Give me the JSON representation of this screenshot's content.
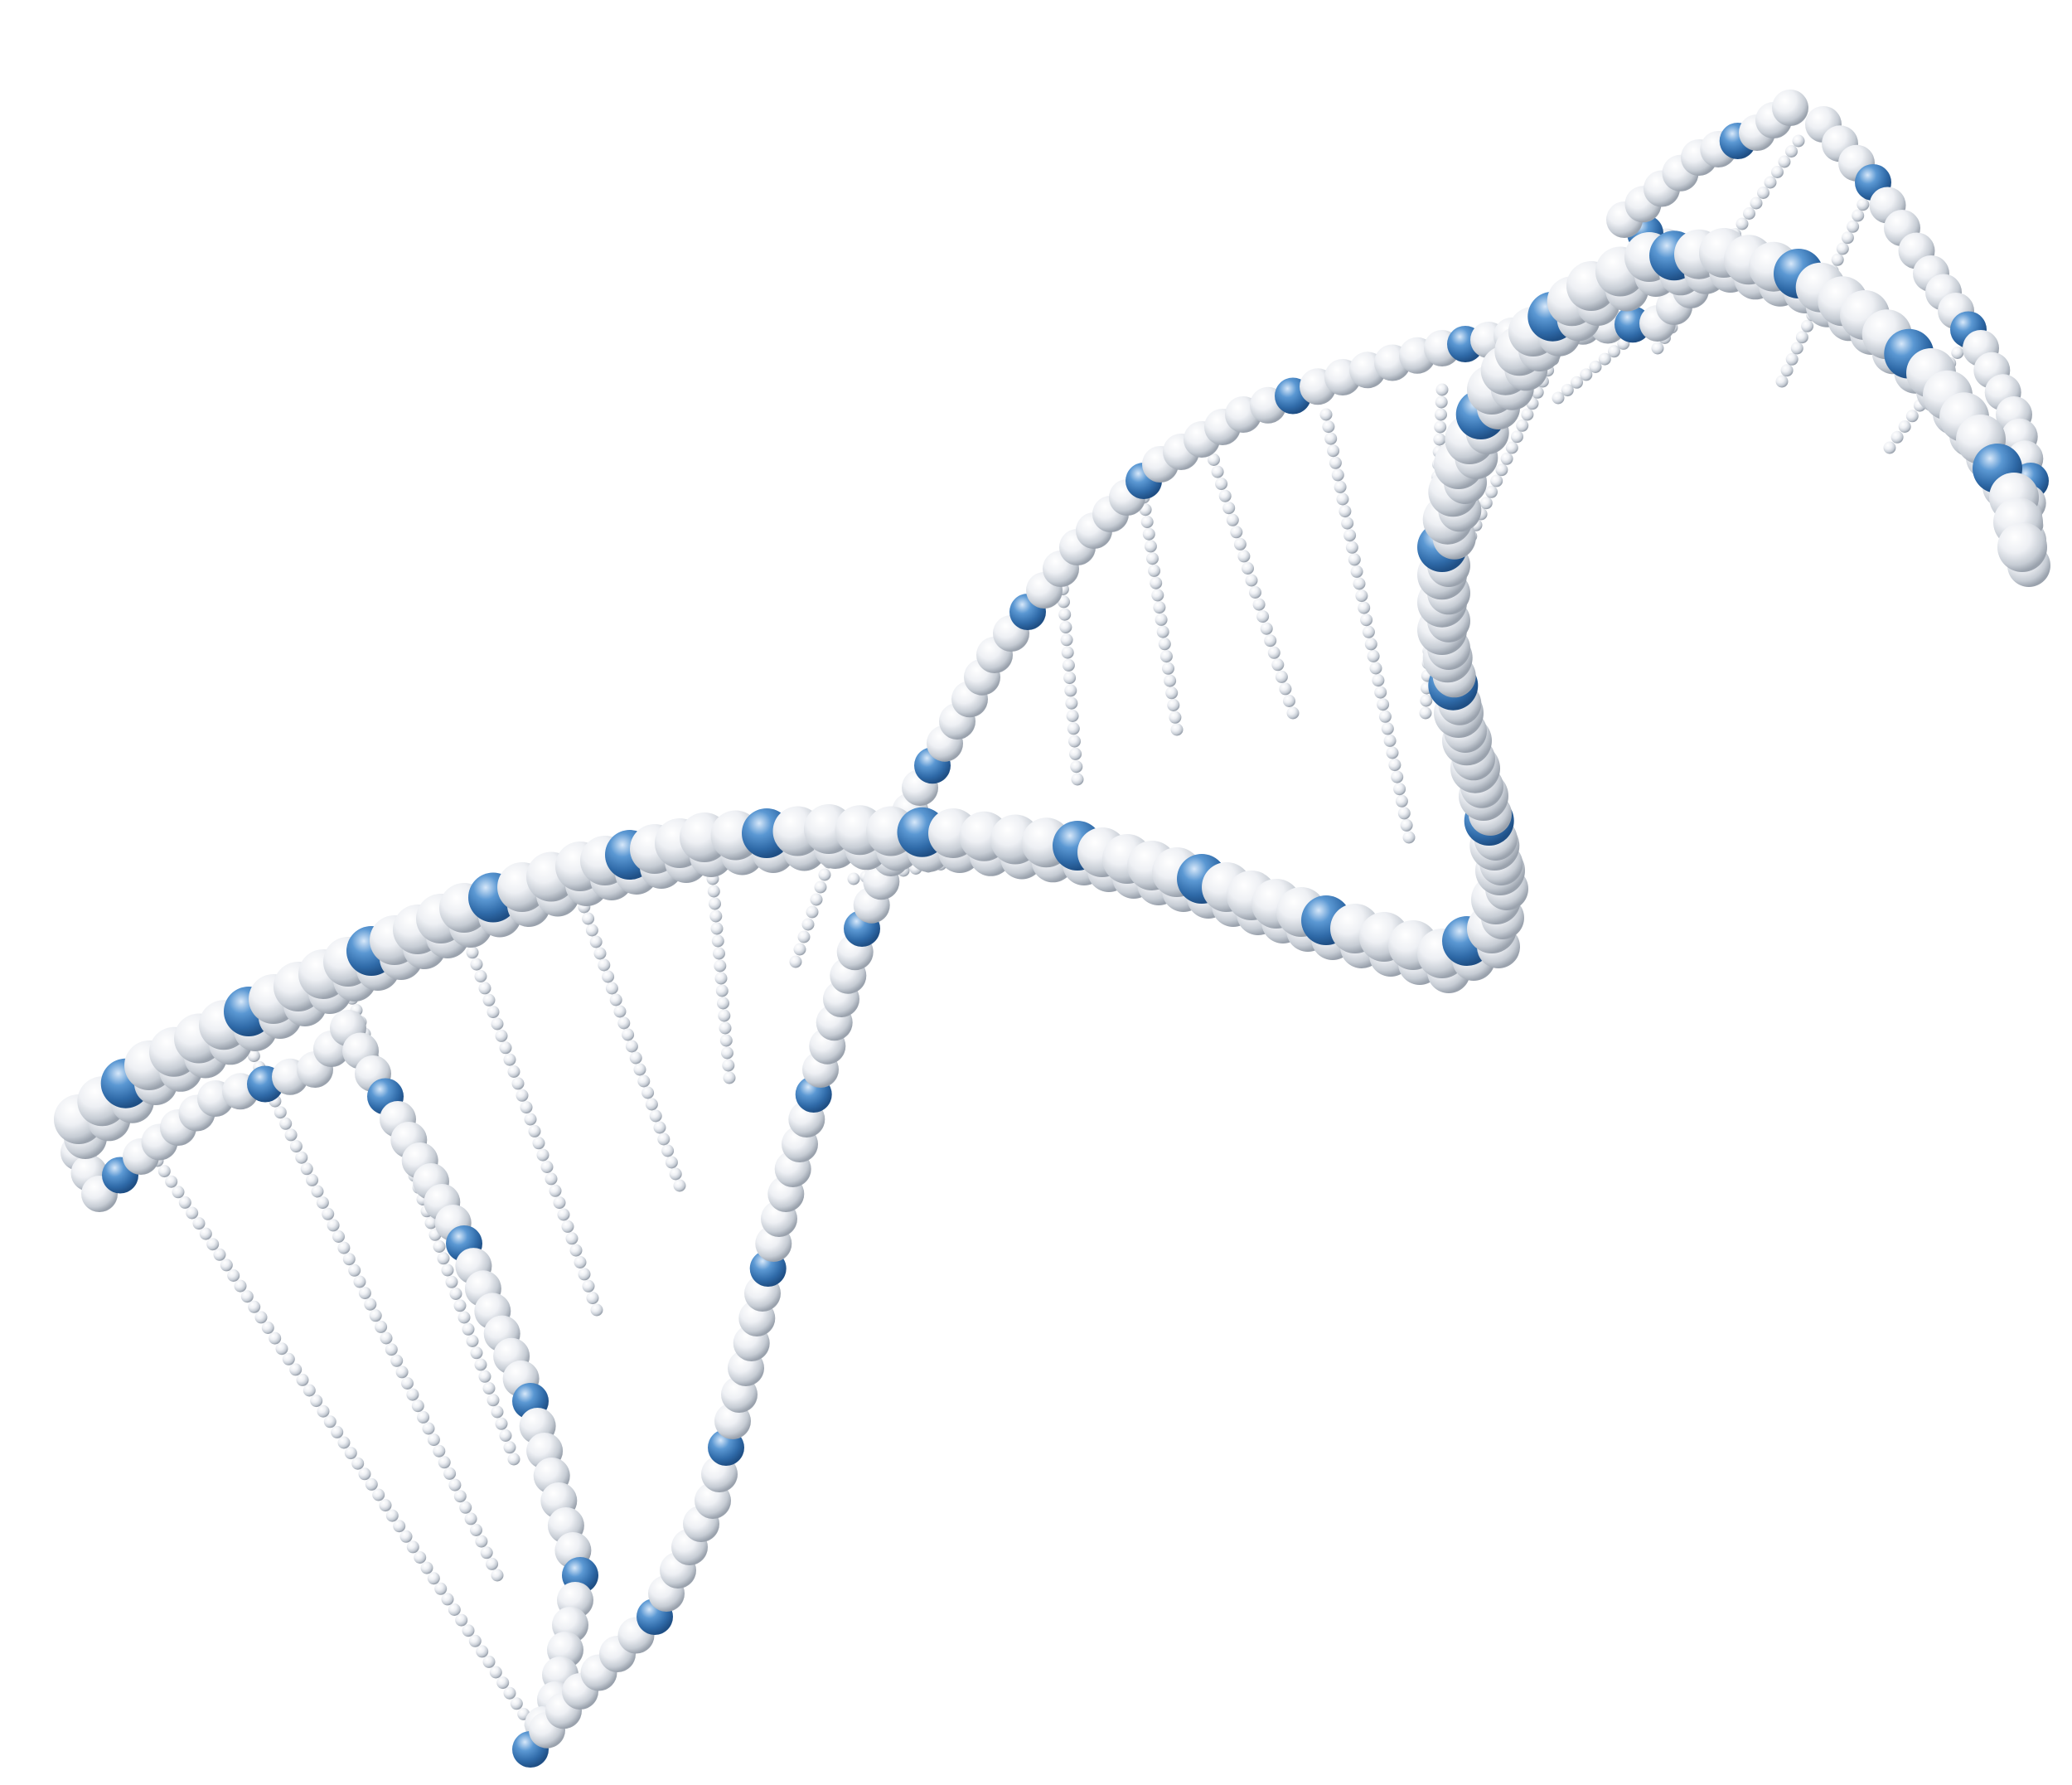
{
  "colors": {
    "background": "#ffffff",
    "bead_white": "#e9ecf1",
    "bead_white_shadow": "#9aa2ad",
    "bead_blue": "#3f7fbf",
    "bead_blue_shadow": "#1f4f85"
  },
  "structure": {
    "type": "double-helix",
    "backbone_strands": 2,
    "rungs": 18
  }
}
